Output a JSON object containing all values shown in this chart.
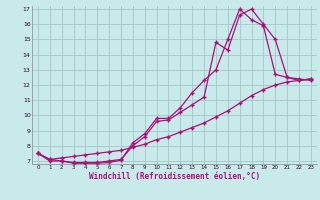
{
  "title": "",
  "xlabel": "Windchill (Refroidissement éolien,°C)",
  "xlim": [
    -0.5,
    23.5
  ],
  "ylim": [
    6.8,
    17.2
  ],
  "xticks": [
    0,
    1,
    2,
    3,
    4,
    5,
    6,
    7,
    8,
    9,
    10,
    11,
    12,
    13,
    14,
    15,
    16,
    17,
    18,
    19,
    20,
    21,
    22,
    23
  ],
  "yticks": [
    7,
    8,
    9,
    10,
    11,
    12,
    13,
    14,
    15,
    16,
    17
  ],
  "bg_color": "#c8eaea",
  "grid_color": "#a8cccc",
  "line_color": "#aa1177",
  "line1_x": [
    0,
    1,
    2,
    3,
    4,
    5,
    6,
    7,
    8,
    9,
    10,
    11,
    12,
    13,
    14,
    15,
    16,
    17,
    18,
    19,
    20,
    21,
    22,
    23
  ],
  "line1_y": [
    7.5,
    7.0,
    7.0,
    6.85,
    6.85,
    6.85,
    6.9,
    7.05,
    8.2,
    8.8,
    9.8,
    9.8,
    10.5,
    11.5,
    12.3,
    13.0,
    15.0,
    17.0,
    16.3,
    15.9,
    12.7,
    12.5,
    12.3,
    12.4
  ],
  "line2_x": [
    0,
    1,
    2,
    3,
    4,
    5,
    6,
    7,
    8,
    9,
    10,
    11,
    12,
    13,
    14,
    15,
    16,
    17,
    18,
    19,
    20,
    21,
    22,
    23
  ],
  "line2_y": [
    7.5,
    7.1,
    7.0,
    6.9,
    6.9,
    6.9,
    7.0,
    7.1,
    8.0,
    8.6,
    9.6,
    9.7,
    10.2,
    10.7,
    11.2,
    14.8,
    14.3,
    16.6,
    17.0,
    16.0,
    15.0,
    12.5,
    12.4,
    12.3
  ],
  "line3_x": [
    0,
    1,
    2,
    3,
    4,
    5,
    6,
    7,
    8,
    9,
    10,
    11,
    12,
    13,
    14,
    15,
    16,
    17,
    18,
    19,
    20,
    21,
    22,
    23
  ],
  "line3_y": [
    7.5,
    7.1,
    7.2,
    7.3,
    7.4,
    7.5,
    7.6,
    7.7,
    7.9,
    8.1,
    8.4,
    8.6,
    8.9,
    9.2,
    9.5,
    9.9,
    10.3,
    10.8,
    11.3,
    11.7,
    12.0,
    12.2,
    12.3,
    12.4
  ]
}
